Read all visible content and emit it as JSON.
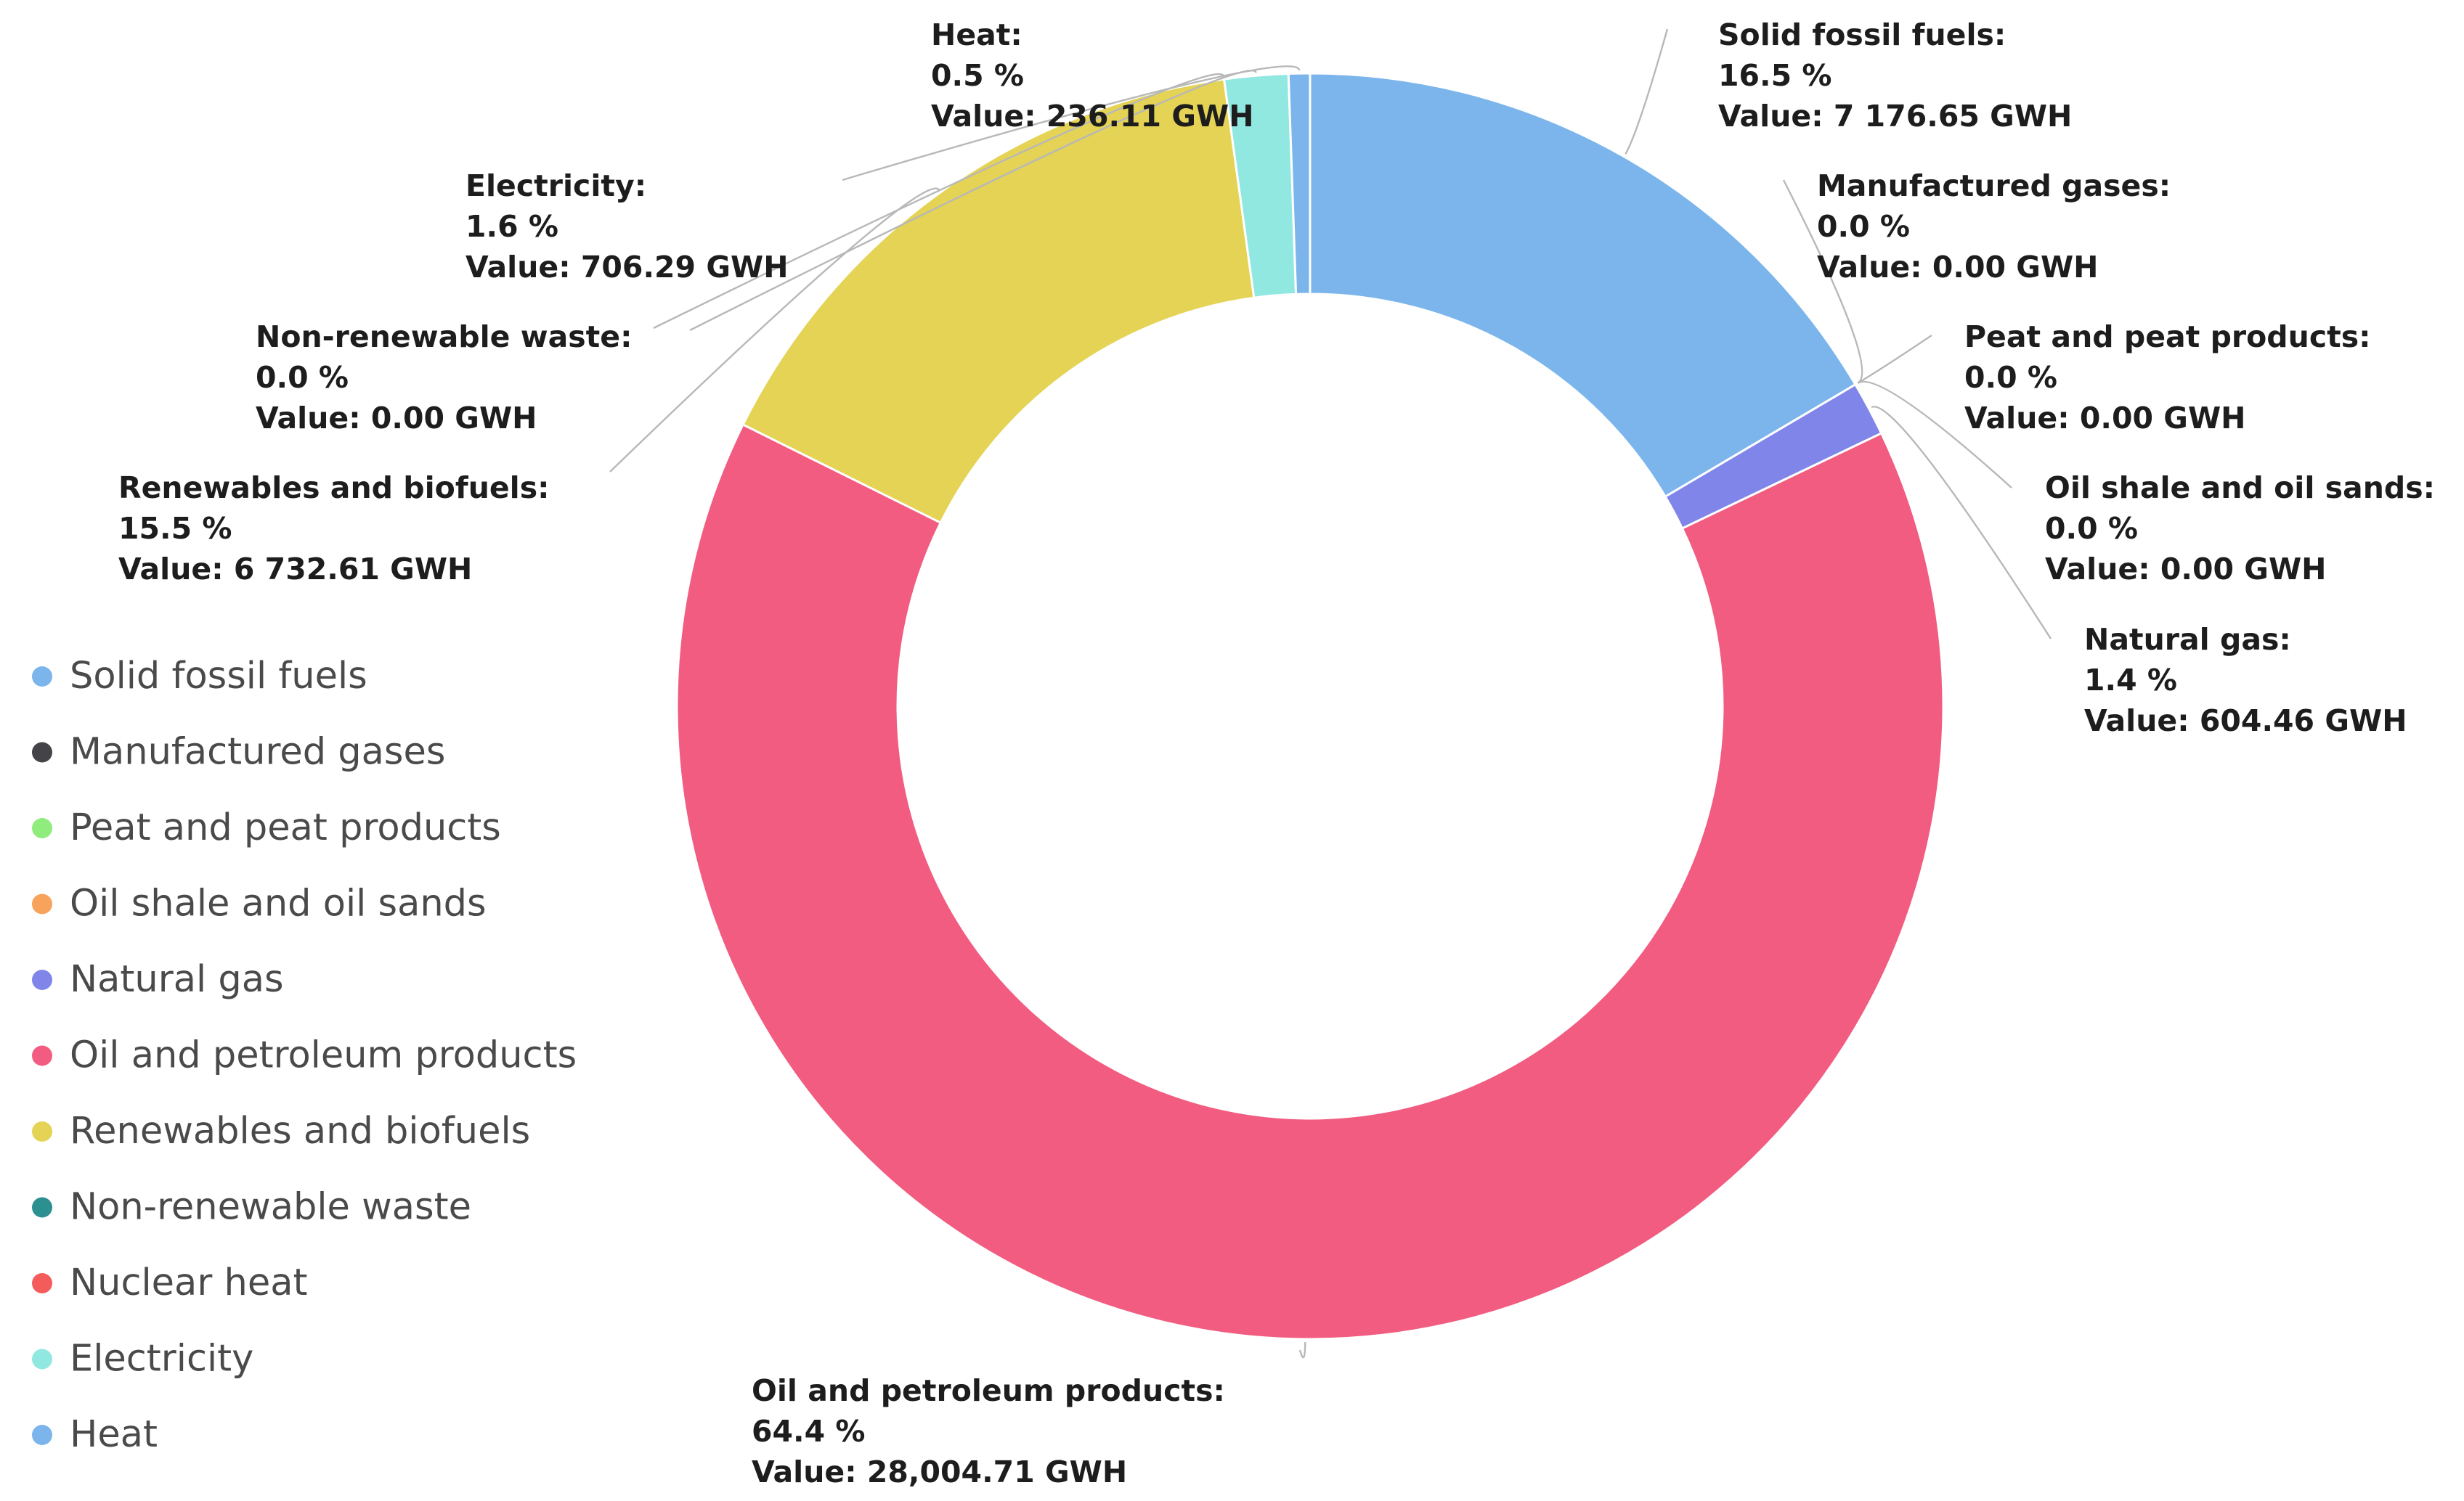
{
  "chart_data": {
    "type": "pie",
    "variant": "donut",
    "title": "",
    "unit": "GWH",
    "legend_position": "left",
    "series": [
      {
        "name": "Solid fossil fuels",
        "percent": "16.5 %",
        "value": 7176.65,
        "value_label": "Value: 7 176.65 GWH",
        "color": "#7cb5ec"
      },
      {
        "name": "Manufactured gases",
        "percent": "0.0 %",
        "value": 0.0,
        "value_label": "Value: 0.00 GWH",
        "color": "#434348"
      },
      {
        "name": "Peat and peat products",
        "percent": "0.0 %",
        "value": 0.0,
        "value_label": "Value: 0.00 GWH",
        "color": "#90ed7d"
      },
      {
        "name": "Oil shale and oil sands",
        "percent": "0.0 %",
        "value": 0.0,
        "value_label": "Value: 0.00 GWH",
        "color": "#f7a35c"
      },
      {
        "name": "Natural gas",
        "percent": "1.4 %",
        "value": 604.46,
        "value_label": "Value: 604.46 GWH",
        "color": "#8085e9"
      },
      {
        "name": "Oil and petroleum products",
        "percent": "64.4 %",
        "value": 28004.71,
        "value_label": "Value: 28,004.71 GWH",
        "color": "#f15c80"
      },
      {
        "name": "Renewables and biofuels",
        "percent": "15.5 %",
        "value": 6732.61,
        "value_label": "Value: 6 732.61 GWH",
        "color": "#e4d354"
      },
      {
        "name": "Non-renewable waste",
        "percent": "0.0 %",
        "value": 0.0,
        "value_label": "Value: 0.00 GWH",
        "color": "#2b908f"
      },
      {
        "name": "Nuclear heat",
        "percent": "",
        "value": 0.0,
        "value_label": "",
        "color": "#f45b5b"
      },
      {
        "name": "Electricity",
        "percent": "1.6 %",
        "value": 706.29,
        "value_label": "Value: 706.29 GWH",
        "color": "#91e8e1"
      },
      {
        "name": "Heat",
        "percent": "0.5 %",
        "value": 236.11,
        "value_label": "Value: 236.11 GWH",
        "color": "#7cb5ec"
      }
    ]
  }
}
